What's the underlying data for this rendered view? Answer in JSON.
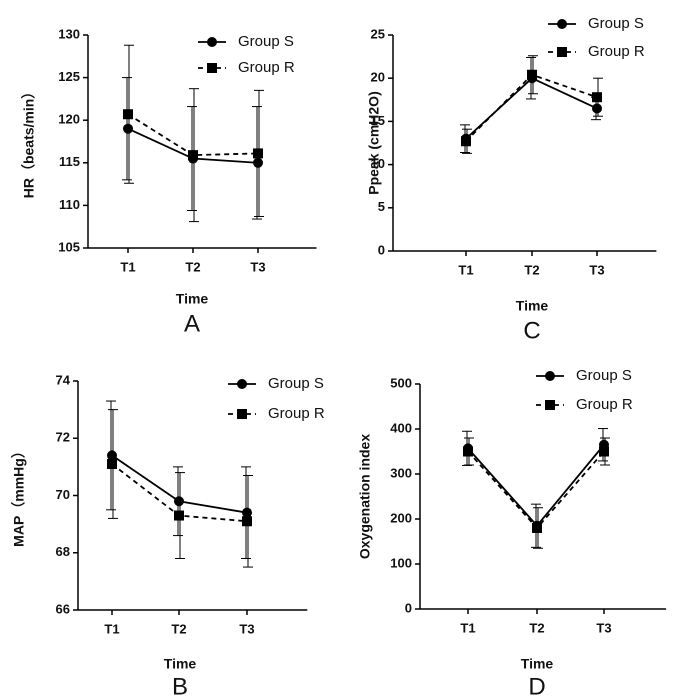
{
  "chart_data": [
    {
      "type": "line",
      "panel_label": "A",
      "y_label": "HR（beats/min）",
      "x_label": "Time",
      "categories": [
        "T1",
        "T2",
        "T3"
      ],
      "ylim": [
        105,
        130
      ],
      "yticks": [
        105,
        110,
        115,
        120,
        125,
        130
      ],
      "series": [
        {
          "name": "Group S",
          "color": "#000000",
          "marker": "circle",
          "dashed": false,
          "values": [
            119,
            115.5,
            115
          ],
          "errors": [
            6,
            6.1,
            6.6
          ]
        },
        {
          "name": "Group R",
          "color": "#000000",
          "marker": "square",
          "dashed": true,
          "values": [
            120.7,
            115.9,
            116.1
          ],
          "errors": [
            8.1,
            7.8,
            7.4
          ]
        }
      ]
    },
    {
      "type": "line",
      "panel_label": "C",
      "y_label": "Ppeak (cmH2O)",
      "x_label": "Time",
      "categories": [
        "T1",
        "T2",
        "T3"
      ],
      "ylim": [
        0,
        25
      ],
      "yticks": [
        0,
        5,
        10,
        15,
        20,
        25
      ],
      "series": [
        {
          "name": "Group S",
          "color": "#000000",
          "marker": "circle",
          "dashed": false,
          "values": [
            13,
            20,
            16.5
          ],
          "errors": [
            1.6,
            2.4,
            1.3
          ]
        },
        {
          "name": "Group R",
          "color": "#000000",
          "marker": "square",
          "dashed": true,
          "values": [
            12.7,
            20.4,
            17.8
          ],
          "errors": [
            1.4,
            2.2,
            2.2
          ]
        }
      ]
    },
    {
      "type": "line",
      "panel_label": "B",
      "y_label": "MAP（mmHg）",
      "x_label": "Time",
      "categories": [
        "T1",
        "T2",
        "T3"
      ],
      "ylim": [
        66,
        74
      ],
      "yticks": [
        66,
        68,
        70,
        72,
        74
      ],
      "series": [
        {
          "name": "Group S",
          "color": "#000000",
          "marker": "circle",
          "dashed": false,
          "values": [
            71.4,
            69.8,
            69.4
          ],
          "errors": [
            1.9,
            1.2,
            1.6
          ]
        },
        {
          "name": "Group R",
          "color": "#000000",
          "marker": "square",
          "dashed": true,
          "values": [
            71.1,
            69.3,
            69.1
          ],
          "errors": [
            1.9,
            1.5,
            1.6
          ]
        }
      ]
    },
    {
      "type": "line",
      "panel_label": "D",
      "y_label": "Oxygenation index",
      "x_label": "Time",
      "categories": [
        "T1",
        "T2",
        "T3"
      ],
      "ylim": [
        0,
        500
      ],
      "yticks": [
        0,
        100,
        200,
        300,
        400,
        500
      ],
      "series": [
        {
          "name": "Group S",
          "color": "#000000",
          "marker": "circle",
          "dashed": false,
          "values": [
            357,
            185,
            365
          ],
          "errors": [
            38,
            48,
            36
          ]
        },
        {
          "name": "Group R",
          "color": "#000000",
          "marker": "square",
          "dashed": true,
          "values": [
            350,
            180,
            350
          ],
          "errors": [
            30,
            45,
            30
          ]
        }
      ]
    }
  ]
}
